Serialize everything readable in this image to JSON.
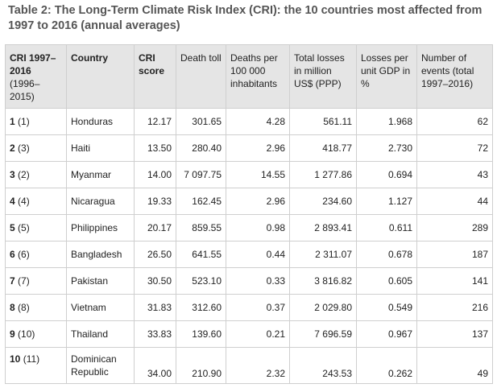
{
  "caption": "Table 2: The Long-Term Climate Risk Index (CRI): the 10 countries most affected from 1997 to 2016 (annual averages)",
  "headers": {
    "cri_rank_bold": "CRI 1997–2016",
    "cri_rank_sub": "(1996–2015)",
    "country": "Country",
    "cri_score": "CRI score",
    "death_toll": "Death toll",
    "deaths_per_100k": "Deaths per 100 000 inhabitants",
    "total_losses": "Total losses in million US$ (PPP)",
    "losses_gdp": "Losses per unit GDP in %",
    "events": "Number of events (total 1997–2016)"
  },
  "rows": [
    {
      "rank": "1",
      "prev": "(1)",
      "country": "Honduras",
      "score": "12.17",
      "deaths": "301.65",
      "per100k": "4.28",
      "losses": "561.11",
      "gdp": "1.968",
      "events": "62"
    },
    {
      "rank": "2",
      "prev": "(3)",
      "country": "Haiti",
      "score": "13.50",
      "deaths": "280.40",
      "per100k": "2.96",
      "losses": "418.77",
      "gdp": "2.730",
      "events": "72"
    },
    {
      "rank": "3",
      "prev": "(2)",
      "country": "Myanmar",
      "score": "14.00",
      "deaths": "7 097.75",
      "per100k": "14.55",
      "losses": "1 277.86",
      "gdp": "0.694",
      "events": "43"
    },
    {
      "rank": "4",
      "prev": "(4)",
      "country": "Nicaragua",
      "score": "19.33",
      "deaths": "162.45",
      "per100k": "2.96",
      "losses": "234.60",
      "gdp": "1.127",
      "events": "44"
    },
    {
      "rank": "5",
      "prev": "(5)",
      "country": "Philippines",
      "score": "20.17",
      "deaths": "859.55",
      "per100k": "0.98",
      "losses": "2 893.41",
      "gdp": "0.611",
      "events": "289"
    },
    {
      "rank": "6",
      "prev": "(6)",
      "country": "Bangladesh",
      "score": "26.50",
      "deaths": "641.55",
      "per100k": "0.44",
      "losses": "2 311.07",
      "gdp": "0.678",
      "events": "187"
    },
    {
      "rank": "7",
      "prev": "(7)",
      "country": "Pakistan",
      "score": "30.50",
      "deaths": "523.10",
      "per100k": "0.33",
      "losses": "3 816.82",
      "gdp": "0.605",
      "events": "141"
    },
    {
      "rank": "8",
      "prev": "(8)",
      "country": "Vietnam",
      "score": "31.83",
      "deaths": "312.60",
      "per100k": "0.37",
      "losses": "2 029.80",
      "gdp": "0.549",
      "events": "216"
    },
    {
      "rank": "9",
      "prev": "(10)",
      "country": "Thailand",
      "score": "33.83",
      "deaths": "139.60",
      "per100k": "0.21",
      "losses": "7 696.59",
      "gdp": "0.967",
      "events": "137"
    },
    {
      "rank": "10",
      "prev": "(11)",
      "country": "Dominican Republic",
      "score": "34.00",
      "deaths": "210.90",
      "per100k": "2.32",
      "losses": "243.53",
      "gdp": "0.262",
      "events": "49"
    }
  ]
}
